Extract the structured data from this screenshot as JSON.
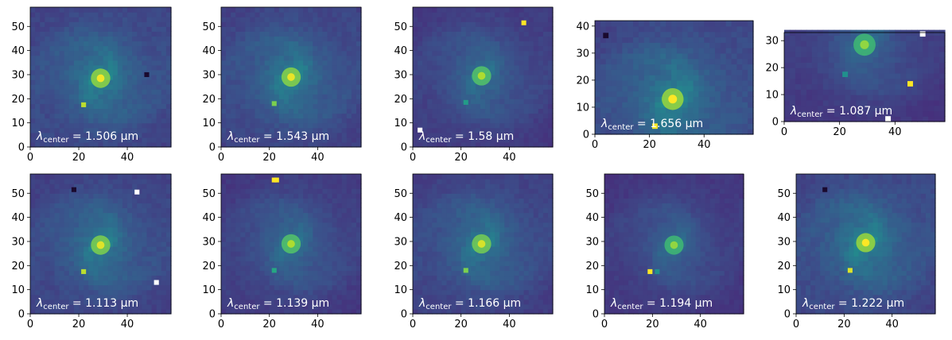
{
  "chart_data": [
    {
      "type": "heatmap",
      "annotation": {
        "symbol": "λ",
        "subscript": "center",
        "value": "1.506",
        "unit": "μm"
      },
      "x_ticks": [
        "0",
        "20",
        "40"
      ],
      "y_ticks": [
        "0",
        "10",
        "20",
        "30",
        "40",
        "50"
      ],
      "xlim": [
        0,
        58
      ],
      "ylim": [
        0,
        58
      ],
      "core": {
        "x": 29,
        "y": 28.5,
        "brightness": 0.95
      },
      "sources": [
        {
          "x": 22,
          "y": 17.5,
          "b": 0.9
        },
        {
          "x": 48,
          "y": 30,
          "b": -1
        }
      ]
    },
    {
      "type": "heatmap",
      "annotation": {
        "symbol": "λ",
        "subscript": "center",
        "value": "1.543",
        "unit": "μm"
      },
      "x_ticks": [
        "0",
        "20",
        "40"
      ],
      "y_ticks": [
        "0",
        "10",
        "20",
        "30",
        "40",
        "50"
      ],
      "xlim": [
        0,
        58
      ],
      "ylim": [
        0,
        58
      ],
      "core": {
        "x": 29,
        "y": 29,
        "brightness": 0.9
      },
      "sources": [
        {
          "x": 22,
          "y": 18,
          "b": 0.8
        }
      ]
    },
    {
      "type": "heatmap",
      "annotation": {
        "symbol": "λ",
        "subscript": "center",
        "value": "1.58",
        "unit": "μm"
      },
      "x_ticks": [
        "0",
        "20",
        "40"
      ],
      "y_ticks": [
        "0",
        "10",
        "20",
        "30",
        "40",
        "50"
      ],
      "xlim": [
        0,
        58
      ],
      "ylim": [
        0,
        58
      ],
      "core": {
        "x": 28.5,
        "y": 29.5,
        "brightness": 0.6
      },
      "sources": [
        {
          "x": 22,
          "y": 18.5,
          "b": 0.55
        },
        {
          "x": 46,
          "y": 51.5,
          "b": 1.0
        },
        {
          "x": 3,
          "y": 7,
          "b": 1.1
        }
      ]
    },
    {
      "type": "heatmap",
      "annotation": {
        "symbol": "λ",
        "subscript": "center",
        "value": "1.656",
        "unit": "μm"
      },
      "x_ticks": [
        "0",
        "20",
        "40"
      ],
      "y_ticks": [
        "0",
        "10",
        "20",
        "30",
        "40"
      ],
      "xlim": [
        0,
        58
      ],
      "ylim": [
        0,
        42
      ],
      "core": {
        "x": 28.5,
        "y": 13,
        "brightness": 1.0
      },
      "sources": [
        {
          "x": 22,
          "y": 3,
          "b": 1.0
        },
        {
          "x": 4,
          "y": 36.5,
          "b": -1
        }
      ]
    },
    {
      "type": "heatmap",
      "annotation": {
        "symbol": "λ",
        "subscript": "center",
        "value": "1.087",
        "unit": "μm"
      },
      "x_ticks": [
        "0",
        "20",
        "40"
      ],
      "y_ticks": [
        "0",
        "10",
        "20",
        "30"
      ],
      "xlim": [
        0,
        58
      ],
      "ylim": [
        0,
        33
      ],
      "core": {
        "x": 29,
        "y": 28.5,
        "brightness": 0.45
      },
      "sources": [
        {
          "x": 45.5,
          "y": 14,
          "b": 1.0
        },
        {
          "x": 37.5,
          "y": 1,
          "b": 1.1
        },
        {
          "x": 50,
          "y": 32.5,
          "b": 1.1
        },
        {
          "x": 22,
          "y": 17.5,
          "b": 0.5
        }
      ]
    },
    {
      "type": "heatmap",
      "annotation": {
        "symbol": "λ",
        "subscript": "center",
        "value": "1.113",
        "unit": "μm"
      },
      "x_ticks": [
        "0",
        "20",
        "40"
      ],
      "y_ticks": [
        "0",
        "10",
        "20",
        "30",
        "40",
        "50"
      ],
      "xlim": [
        0,
        58
      ],
      "ylim": [
        0,
        58
      ],
      "core": {
        "x": 29,
        "y": 28.5,
        "brightness": 0.85
      },
      "sources": [
        {
          "x": 22,
          "y": 17.5,
          "b": 0.9
        },
        {
          "x": 44,
          "y": 50.5,
          "b": 1.1
        },
        {
          "x": 52,
          "y": 13,
          "b": 1.1
        },
        {
          "x": 18,
          "y": 51.5,
          "b": -1
        }
      ]
    },
    {
      "type": "heatmap",
      "annotation": {
        "symbol": "λ",
        "subscript": "center",
        "value": "1.139",
        "unit": "μm"
      },
      "x_ticks": [
        "0",
        "20",
        "40"
      ],
      "y_ticks": [
        "0",
        "10",
        "20",
        "30",
        "40",
        "50"
      ],
      "xlim": [
        0,
        58
      ],
      "ylim": [
        0,
        58
      ],
      "core": {
        "x": 29,
        "y": 29,
        "brightness": 0.6
      },
      "sources": [
        {
          "x": 22,
          "y": 18,
          "b": 0.6
        },
        {
          "x": 22,
          "y": 55.5,
          "b": 1.0
        },
        {
          "x": 23,
          "y": 55.5,
          "b": 1.0
        }
      ]
    },
    {
      "type": "heatmap",
      "annotation": {
        "symbol": "λ",
        "subscript": "center",
        "value": "1.166",
        "unit": "μm"
      },
      "x_ticks": [
        "0",
        "20",
        "40"
      ],
      "y_ticks": [
        "0",
        "10",
        "20",
        "30",
        "40",
        "50"
      ],
      "xlim": [
        0,
        58
      ],
      "ylim": [
        0,
        58
      ],
      "core": {
        "x": 28.5,
        "y": 29,
        "brightness": 0.8
      },
      "sources": [
        {
          "x": 22,
          "y": 18,
          "b": 0.8
        }
      ]
    },
    {
      "type": "heatmap",
      "annotation": {
        "symbol": "λ",
        "subscript": "center",
        "value": "1.194",
        "unit": "μm"
      },
      "x_ticks": [
        "0",
        "20",
        "40"
      ],
      "y_ticks": [
        "0",
        "10",
        "20",
        "30",
        "40",
        "50"
      ],
      "xlim": [
        0,
        58
      ],
      "ylim": [
        0,
        58
      ],
      "core": {
        "x": 29,
        "y": 28.5,
        "brightness": 0.45
      },
      "sources": [
        {
          "x": 19,
          "y": 17.5,
          "b": 1.0
        },
        {
          "x": 22,
          "y": 17.5,
          "b": 0.5
        }
      ]
    },
    {
      "type": "heatmap",
      "annotation": {
        "symbol": "λ",
        "subscript": "center",
        "value": "1.222",
        "unit": "μm"
      },
      "x_ticks": [
        "0",
        "20",
        "40"
      ],
      "y_ticks": [
        "0",
        "10",
        "20",
        "30",
        "40",
        "50"
      ],
      "xlim": [
        0,
        58
      ],
      "ylim": [
        0,
        58
      ],
      "core": {
        "x": 29,
        "y": 29.5,
        "brightness": 1.0
      },
      "sources": [
        {
          "x": 22.5,
          "y": 18,
          "b": 0.95
        },
        {
          "x": 12,
          "y": 51.5,
          "b": -1
        }
      ]
    }
  ],
  "colormap": "viridis",
  "colors": {
    "axis_line": "#000000",
    "annotation_text": "#ffffff",
    "background": "#ffffff"
  }
}
